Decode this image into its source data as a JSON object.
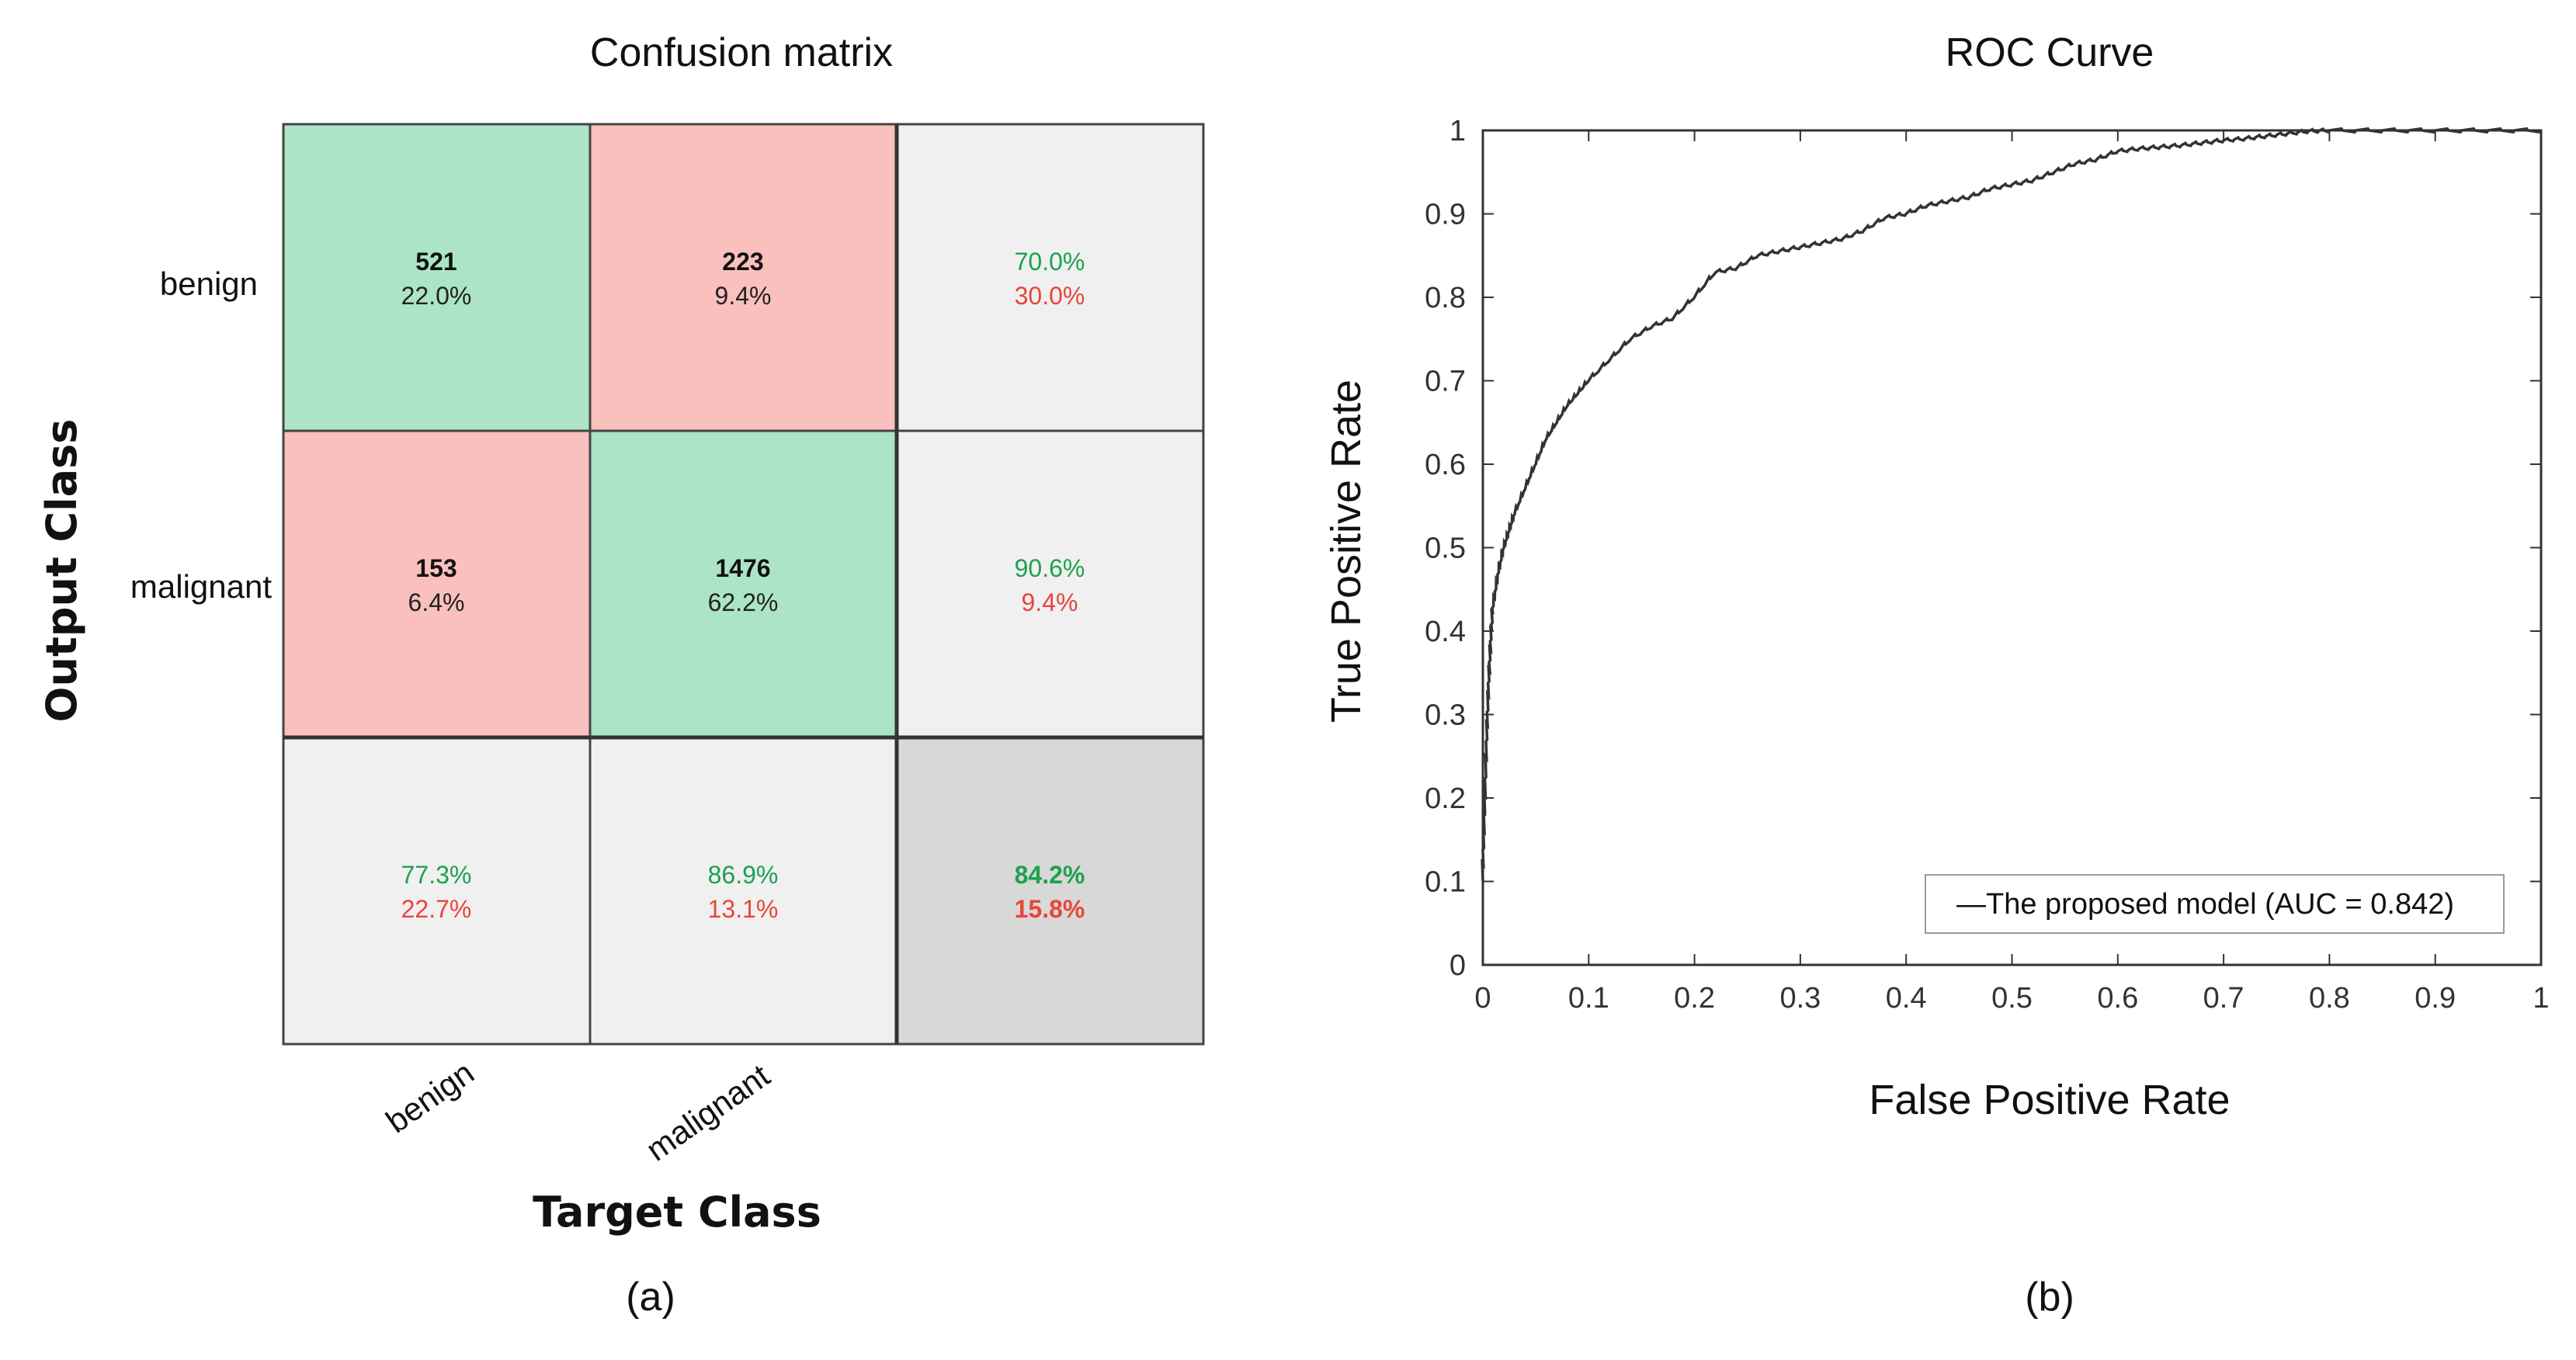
{
  "colors": {
    "correct_cell": "#abe5c5",
    "error_cell": "#f9c0bd",
    "summary_cell": "#f0f0f0",
    "overall_cell": "#d8d8d8",
    "green_text": "#1ca24e",
    "red_text": "#e8453a",
    "curve": "#333333",
    "grid": "#555555"
  },
  "chart_data": [
    {
      "type": "heatmap",
      "title": "Confusion matrix",
      "xlabel": "Target Class",
      "ylabel": "Output Class",
      "x_classes": [
        "benign",
        "malignant"
      ],
      "y_classes": [
        "benign",
        "malignant"
      ],
      "counts": [
        [
          521,
          223
        ],
        [
          153,
          1476
        ]
      ],
      "cell_percent": [
        [
          "22.0%",
          "9.4%"
        ],
        [
          "6.4%",
          "62.2%"
        ]
      ],
      "row_summary": [
        [
          "70.0%",
          "30.0%"
        ],
        [
          "90.6%",
          "9.4%"
        ]
      ],
      "col_summary": [
        [
          "77.3%",
          "22.7%"
        ],
        [
          "86.9%",
          "13.1%"
        ]
      ],
      "overall": [
        "84.2%",
        "15.8%"
      ],
      "panel_label": "(a)"
    },
    {
      "type": "line",
      "title": "ROC Curve",
      "xlabel": "False Positive Rate",
      "ylabel": "True Positive Rate",
      "xlim": [
        0,
        1
      ],
      "ylim": [
        0,
        1
      ],
      "xticks": [
        0,
        0.1,
        0.2,
        0.3,
        0.4,
        0.5,
        0.6,
        0.7,
        0.8,
        0.9,
        1
      ],
      "yticks": [
        0,
        0.1,
        0.2,
        0.3,
        0.4,
        0.5,
        0.6,
        0.7,
        0.8,
        0.9,
        1
      ],
      "legend_location": "bottom-right",
      "series": [
        {
          "name": "—The proposed model (AUC = 0.842)",
          "x": [
            0,
            0.002,
            0.004,
            0.006,
            0.008,
            0.01,
            0.015,
            0.02,
            0.025,
            0.03,
            0.04,
            0.05,
            0.06,
            0.07,
            0.08,
            0.09,
            0.1,
            0.12,
            0.14,
            0.16,
            0.18,
            0.2,
            0.22,
            0.24,
            0.26,
            0.28,
            0.3,
            0.32,
            0.34,
            0.36,
            0.38,
            0.4,
            0.42,
            0.44,
            0.46,
            0.48,
            0.5,
            0.52,
            0.54,
            0.56,
            0.58,
            0.6,
            0.62,
            0.64,
            0.66,
            0.68,
            0.7,
            0.72,
            0.74,
            0.76,
            0.78,
            0.8,
            0.85,
            0.9,
            0.95,
            1
          ],
          "y": [
            0.1,
            0.18,
            0.27,
            0.34,
            0.39,
            0.43,
            0.47,
            0.5,
            0.52,
            0.54,
            0.57,
            0.6,
            0.63,
            0.65,
            0.67,
            0.685,
            0.7,
            0.725,
            0.75,
            0.765,
            0.775,
            0.8,
            0.83,
            0.835,
            0.85,
            0.855,
            0.86,
            0.865,
            0.87,
            0.88,
            0.895,
            0.9,
            0.91,
            0.915,
            0.92,
            0.93,
            0.935,
            0.94,
            0.95,
            0.96,
            0.965,
            0.975,
            0.978,
            0.98,
            0.982,
            0.985,
            0.988,
            0.99,
            0.993,
            0.996,
            0.999,
            1,
            1,
            1,
            1,
            1
          ]
        }
      ],
      "panel_label": "(b)"
    }
  ]
}
